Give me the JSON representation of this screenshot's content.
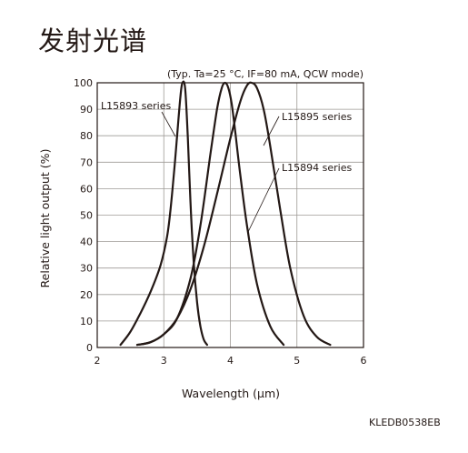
{
  "page": {
    "title": "发射光谱",
    "doc_code": "KLEDB0538EB"
  },
  "chart_data": {
    "type": "line",
    "conditions": "(Typ. Ta=25 °C, IF=80 mA, QCW mode)",
    "xlabel": "Wavelength (µm)",
    "ylabel": "Relative light output (%)",
    "xlim": [
      2,
      6
    ],
    "ylim": [
      0,
      100
    ],
    "x_ticks": [
      2,
      3,
      4,
      5,
      6
    ],
    "y_ticks": [
      0,
      10,
      20,
      30,
      40,
      50,
      60,
      70,
      80,
      90,
      100
    ],
    "grid": true,
    "series": [
      {
        "name": "L15893 series",
        "x": [
          2.35,
          2.5,
          2.65,
          2.8,
          2.95,
          3.05,
          3.1,
          3.15,
          3.2,
          3.25,
          3.28,
          3.32,
          3.36,
          3.4,
          3.45,
          3.5,
          3.55,
          3.6,
          3.65
        ],
        "y": [
          1,
          6,
          13,
          21,
          31,
          42,
          52,
          65,
          80,
          95,
          100,
          98,
          80,
          55,
          32,
          17,
          8,
          3,
          1
        ]
      },
      {
        "name": "L15894 series",
        "x": [
          2.6,
          2.8,
          3.0,
          3.2,
          3.4,
          3.55,
          3.7,
          3.8,
          3.87,
          3.92,
          3.97,
          4.02,
          4.08,
          4.15,
          4.25,
          4.4,
          4.6,
          4.8
        ],
        "y": [
          1,
          2,
          5,
          11,
          26,
          46,
          73,
          90,
          98,
          100,
          98,
          92,
          80,
          65,
          46,
          24,
          8,
          1
        ]
      },
      {
        "name": "L15895 series",
        "x": [
          2.6,
          2.8,
          3.0,
          3.2,
          3.4,
          3.6,
          3.8,
          4.0,
          4.15,
          4.25,
          4.32,
          4.4,
          4.5,
          4.6,
          4.75,
          4.9,
          5.1,
          5.3,
          5.5
        ],
        "y": [
          1,
          2,
          5,
          11,
          22,
          38,
          58,
          79,
          93,
          99,
          100,
          98,
          90,
          76,
          52,
          30,
          12,
          4,
          1
        ]
      }
    ]
  }
}
